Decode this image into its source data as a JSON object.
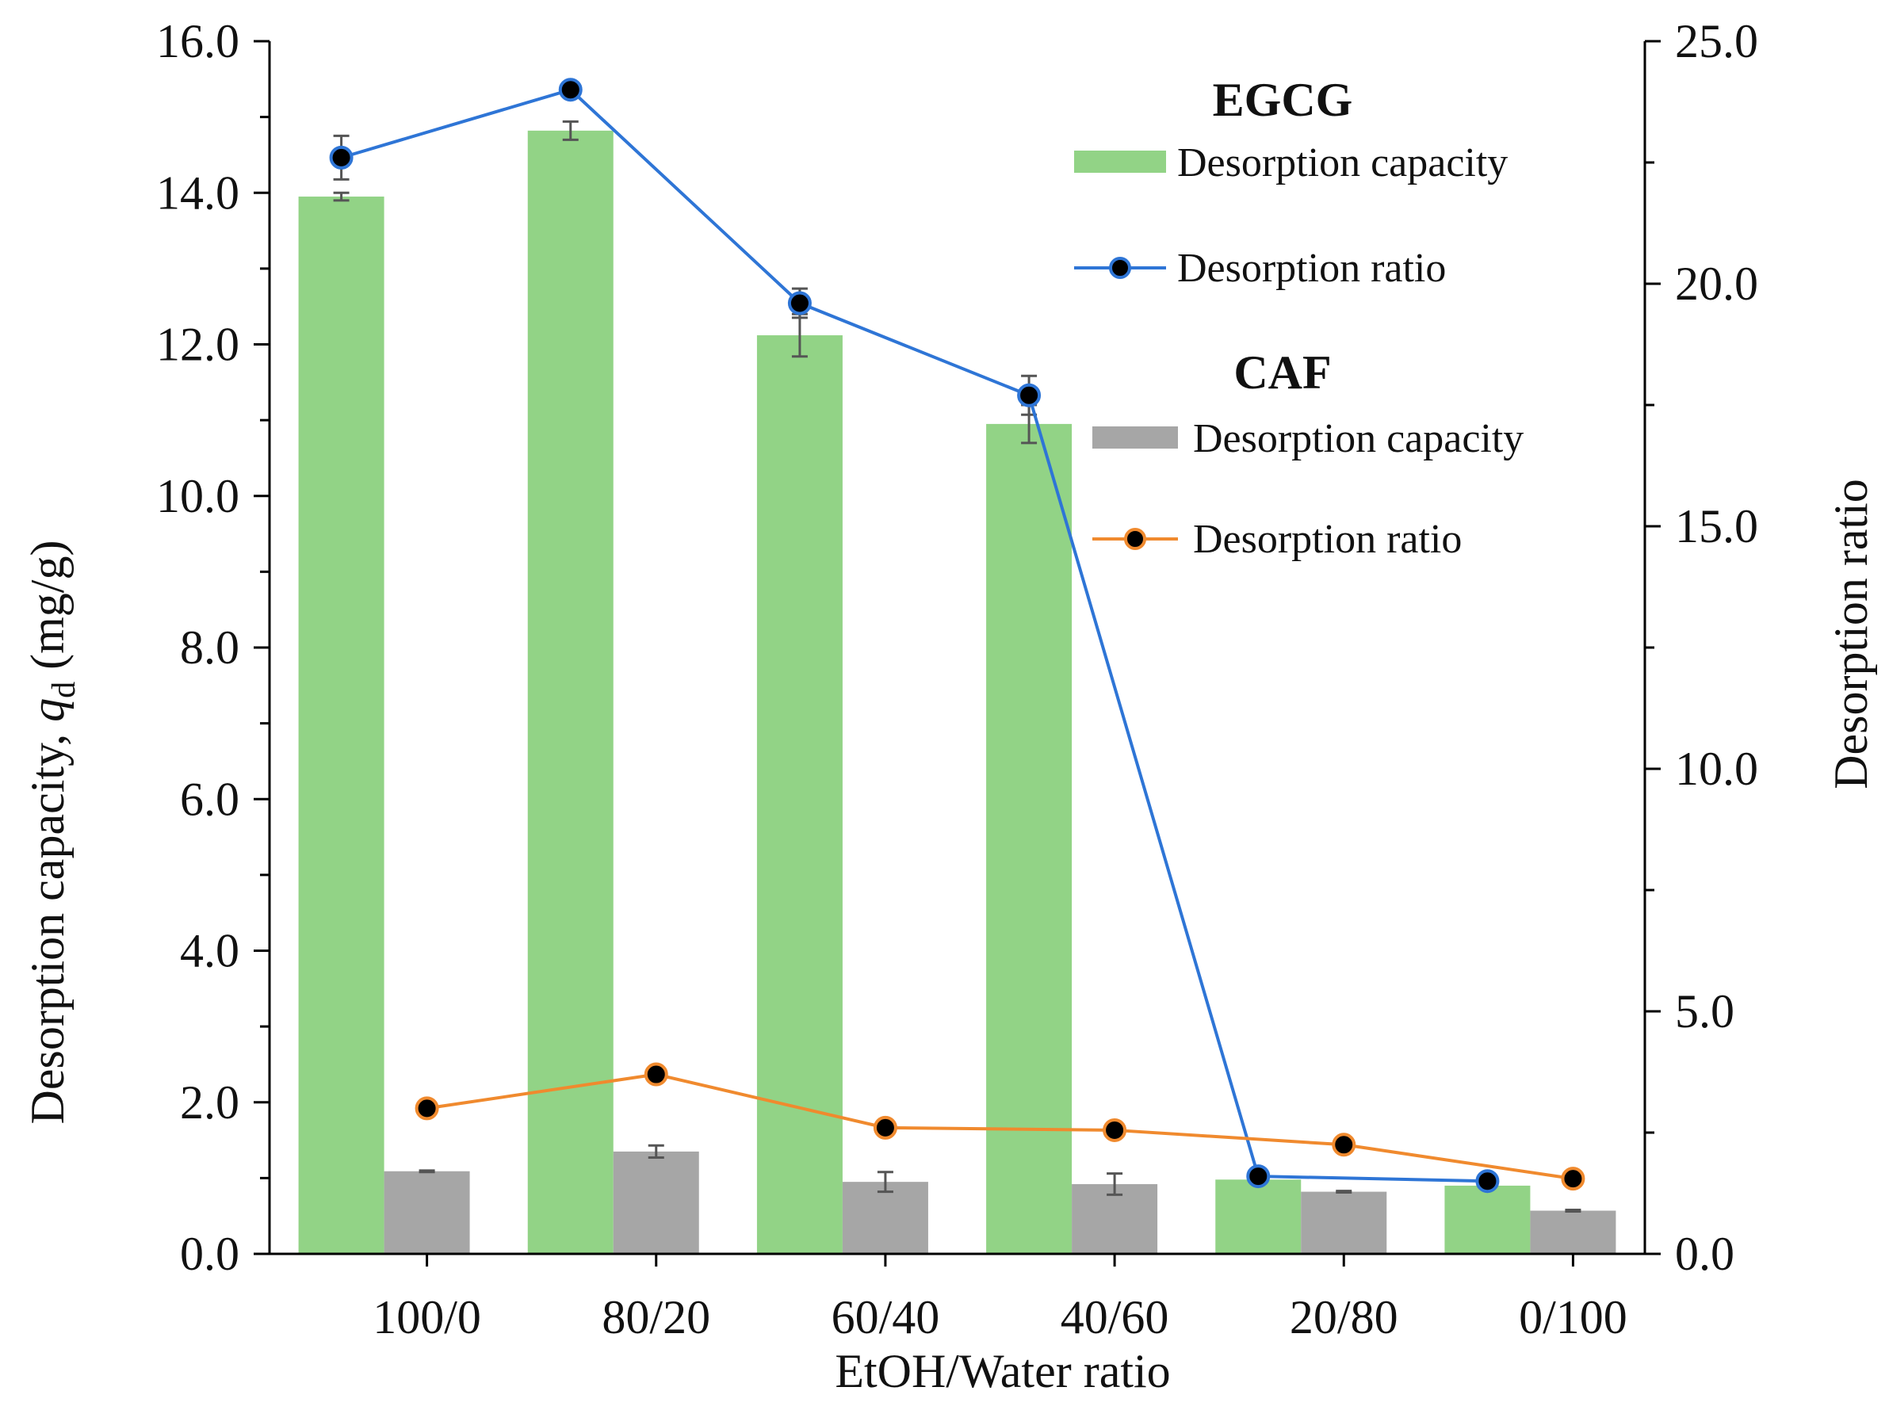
{
  "chart_data": {
    "type": "bar+line",
    "xlabel": "EtOH/Water ratio",
    "ylabel_left_prefix": "Desorption capacity, ",
    "ylabel_left_var": "q",
    "ylabel_left_sub": "d",
    "ylabel_left_unit": "  (mg/g)",
    "ylabel_right": "Desorption ratio",
    "categories": [
      "100/0",
      "80/20",
      "60/40",
      "40/60",
      "20/80",
      "0/100"
    ],
    "ylim_left": [
      0,
      16
    ],
    "ylim_right": [
      0,
      25
    ],
    "left_ticks": [
      "0.0",
      "2.0",
      "4.0",
      "6.0",
      "8.0",
      "10.0",
      "12.0",
      "14.0",
      "16.0"
    ],
    "right_ticks": [
      "0.0",
      "5.0",
      "10.0",
      "15.0",
      "20.0",
      "25.0"
    ],
    "bars": [
      {
        "name": "EGCG Desorption capacity",
        "color": "#92d386",
        "values": [
          13.95,
          14.82,
          12.12,
          10.95,
          0.98,
          0.9
        ],
        "errors": [
          0.05,
          0.12,
          0.28,
          0.25,
          0.0,
          0.0
        ]
      },
      {
        "name": "CAF Desorption capacity",
        "color": "#a6a6a6",
        "values": [
          1.09,
          1.35,
          0.95,
          0.92,
          0.82,
          0.57
        ],
        "errors": [
          0.01,
          0.08,
          0.13,
          0.14,
          0.01,
          0.01
        ]
      }
    ],
    "lines": [
      {
        "name": "EGCG Desorption ratio",
        "color": "#2e75d6",
        "axis": "right",
        "values": [
          22.6,
          24.0,
          19.6,
          17.7,
          1.6,
          1.5
        ],
        "errors": [
          0.45,
          0.0,
          0.3,
          0.4,
          0.0,
          0.0
        ]
      },
      {
        "name": "CAF Desorption ratio",
        "color": "#f08a2e",
        "axis": "right",
        "values": [
          3.0,
          3.7,
          2.6,
          2.55,
          2.25,
          1.55
        ],
        "errors": [
          0,
          0,
          0,
          0,
          0,
          0
        ]
      }
    ],
    "legend": {
      "groups": [
        {
          "title": "EGCG",
          "items": [
            "Desorption capacity",
            "Desorption ratio"
          ]
        },
        {
          "title": "CAF",
          "items": [
            "Desorption capacity",
            "Desorption ratio"
          ]
        }
      ],
      "placement": "top-right"
    }
  }
}
